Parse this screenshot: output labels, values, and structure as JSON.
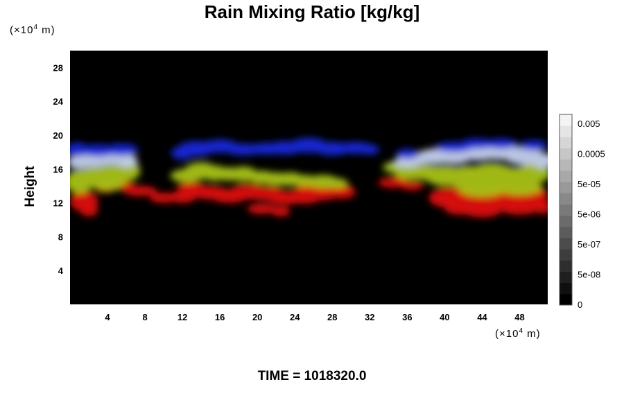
{
  "chart_data": {
    "type": "heatmap",
    "title": "Rain Mixing Ratio [kg/kg]",
    "ylabel": "Height",
    "x_unit_label": {
      "prefix": "(×10",
      "exp": "4",
      "suffix": " m)"
    },
    "y_unit_label": {
      "prefix": "(×10",
      "exp": "4",
      "suffix": " m)"
    },
    "xlim": [
      0,
      51
    ],
    "ylim": [
      0,
      30
    ],
    "x_ticks": [
      4,
      8,
      12,
      16,
      20,
      24,
      28,
      32,
      36,
      40,
      44,
      48
    ],
    "y_ticks": [
      4,
      8,
      12,
      16,
      20,
      24,
      28
    ],
    "colorbar": {
      "labels": [
        "0.005",
        "0.0005",
        "5e-05",
        "5e-06",
        "5e-07",
        "5e-08",
        "0"
      ],
      "levels": 17
    },
    "background_color": "#000000",
    "field_layers": [
      {
        "name": "low",
        "color": "#e01010",
        "blobs": [
          [
            1.5,
            12.2,
            1.5,
            1.2
          ],
          [
            2,
            11.2,
            1.0,
            0.8
          ],
          [
            7.5,
            13.4,
            1.8,
            0.6
          ],
          [
            10,
            12.6,
            1.5,
            0.6
          ],
          [
            12,
            12.7,
            1.5,
            0.7
          ],
          [
            13,
            13.8,
            1.6,
            0.6
          ],
          [
            15,
            13.2,
            2.0,
            0.8
          ],
          [
            17,
            12.8,
            2.0,
            0.8
          ],
          [
            19,
            13.3,
            2.0,
            0.9
          ],
          [
            21,
            13.1,
            2.0,
            0.8
          ],
          [
            23,
            12.6,
            2.0,
            0.8
          ],
          [
            25,
            12.8,
            2.0,
            0.9
          ],
          [
            27,
            13.2,
            1.8,
            0.9
          ],
          [
            29,
            13.3,
            1.5,
            0.8
          ],
          [
            20.5,
            11.3,
            1.6,
            0.6
          ],
          [
            22.5,
            11.0,
            1.0,
            0.6
          ],
          [
            25.5,
            13.8,
            1.3,
            0.6
          ],
          [
            34.5,
            14.4,
            1.6,
            0.6
          ],
          [
            36.5,
            14.0,
            1.3,
            0.5
          ],
          [
            40.5,
            12.6,
            2.2,
            1.2
          ],
          [
            43,
            12.3,
            2.5,
            1.5
          ],
          [
            45.5,
            12.5,
            2.5,
            1.5
          ],
          [
            47.5,
            12.5,
            2.0,
            1.4
          ],
          [
            49.5,
            12.8,
            1.5,
            1.3
          ],
          [
            41.8,
            11.2,
            1.8,
            0.6
          ],
          [
            44,
            11.0,
            2.0,
            0.7
          ],
          [
            48,
            11.2,
            2.0,
            0.6
          ],
          [
            50.5,
            11.5,
            0.8,
            0.8
          ],
          [
            3.8,
            13.8,
            1.2,
            0.6
          ],
          [
            5.5,
            14.0,
            1.5,
            0.5
          ]
        ]
      },
      {
        "name": "mid",
        "color": "#a8c214",
        "blobs": [
          [
            1,
            14.5,
            1.5,
            1.4
          ],
          [
            2.5,
            15.0,
            1.8,
            1.2
          ],
          [
            4.5,
            15.2,
            2.0,
            1.3
          ],
          [
            6.2,
            15.8,
            1.3,
            1.2
          ],
          [
            4,
            14.0,
            1.5,
            0.6
          ],
          [
            12.5,
            15.2,
            1.8,
            0.8
          ],
          [
            14,
            15.8,
            1.8,
            1.0
          ],
          [
            15.5,
            15.5,
            1.5,
            0.9
          ],
          [
            17,
            15.4,
            1.3,
            0.8
          ],
          [
            18.5,
            15.4,
            1.5,
            0.9
          ],
          [
            20.5,
            15.0,
            1.5,
            0.8
          ],
          [
            22,
            14.8,
            1.5,
            0.8
          ],
          [
            23.5,
            14.8,
            1.5,
            0.8
          ],
          [
            25,
            14.6,
            1.5,
            0.7
          ],
          [
            27,
            14.5,
            1.8,
            0.8
          ],
          [
            28.5,
            14.3,
            1.2,
            0.6
          ],
          [
            35,
            16.2,
            1.6,
            0.7
          ],
          [
            36.5,
            15.6,
            2.0,
            0.9
          ],
          [
            38,
            15.6,
            1.8,
            0.9
          ],
          [
            40,
            15.2,
            2.2,
            1.2
          ],
          [
            42.5,
            15.0,
            2.5,
            1.4
          ],
          [
            45,
            15.4,
            2.5,
            1.3
          ],
          [
            47.5,
            15.0,
            2.5,
            1.2
          ],
          [
            49.5,
            15.5,
            1.8,
            1.2
          ],
          [
            44,
            13.6,
            2.5,
            0.9
          ],
          [
            48,
            13.8,
            2.5,
            0.9
          ]
        ]
      },
      {
        "name": "upper",
        "color": "#c4d0f0",
        "blobs": [
          [
            1,
            16.8,
            1.3,
            0.8
          ],
          [
            2.5,
            17.0,
            1.8,
            0.8
          ],
          [
            4.5,
            17.2,
            1.5,
            0.7
          ],
          [
            6,
            17.0,
            1.2,
            0.8
          ],
          [
            37,
            17.2,
            2.0,
            0.7
          ],
          [
            39,
            17.5,
            2.0,
            0.9
          ],
          [
            41,
            17.6,
            2.0,
            1.0
          ],
          [
            43.5,
            18.0,
            2.5,
            1.0
          ],
          [
            46,
            18.0,
            2.5,
            0.9
          ],
          [
            48.5,
            17.5,
            2.2,
            1.0
          ],
          [
            50.5,
            17.0,
            1.2,
            0.9
          ],
          [
            36,
            16.8,
            1.5,
            0.6
          ]
        ]
      },
      {
        "name": "top",
        "color": "#1a2ad8",
        "blobs": [
          [
            0.8,
            18.3,
            1.2,
            0.8
          ],
          [
            3,
            18.2,
            2.0,
            0.7
          ],
          [
            5.5,
            18.3,
            1.8,
            0.7
          ],
          [
            12,
            17.9,
            1.2,
            0.8
          ],
          [
            13.5,
            18.4,
            2.0,
            0.9
          ],
          [
            16,
            18.7,
            2.0,
            0.8
          ],
          [
            18.5,
            18.3,
            2.0,
            0.7
          ],
          [
            21,
            18.4,
            2.0,
            0.7
          ],
          [
            23,
            18.5,
            2.0,
            0.8
          ],
          [
            25.5,
            18.8,
            2.0,
            0.9
          ],
          [
            28,
            18.4,
            2.0,
            0.8
          ],
          [
            30.5,
            18.5,
            1.8,
            0.7
          ],
          [
            32,
            18.3,
            1.0,
            0.6
          ],
          [
            36,
            17.8,
            1.2,
            0.6
          ],
          [
            41,
            18.6,
            2.0,
            0.6
          ],
          [
            43.5,
            19.0,
            1.8,
            0.6
          ],
          [
            46,
            19.0,
            1.8,
            0.6
          ],
          [
            49.5,
            18.8,
            1.5,
            0.6
          ]
        ]
      }
    ]
  },
  "footer": {
    "time_label": "TIME = 1018320.0"
  }
}
